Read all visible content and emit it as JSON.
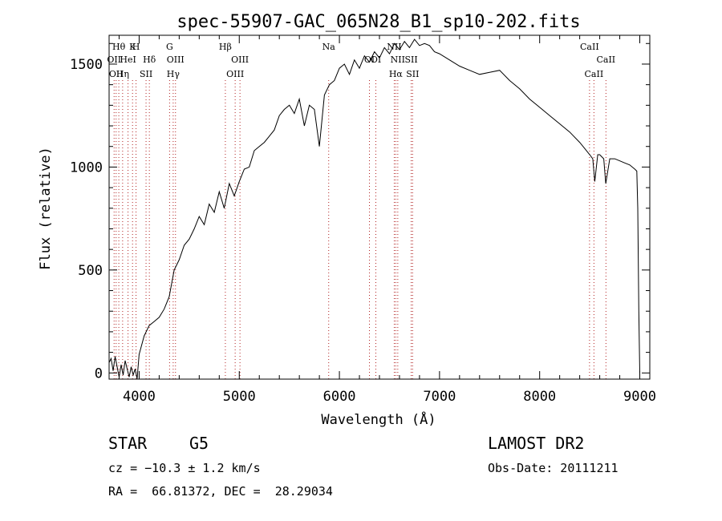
{
  "chart_data": {
    "type": "line",
    "title": "spec-55907-GAC_065N28_B1_sp10-202.fits",
    "xlabel": "Wavelength (Å)",
    "ylabel": "Flux (relative)",
    "xlim": [
      3700,
      9100
    ],
    "ylim": [
      -30,
      1640
    ],
    "x_ticks": [
      4000,
      5000,
      6000,
      7000,
      8000,
      9000
    ],
    "y_ticks": [
      0,
      500,
      1000,
      1500
    ],
    "series": [
      {
        "x": [
          3700,
          3720,
          3740,
          3760,
          3780,
          3800,
          3820,
          3840,
          3860,
          3880,
          3900,
          3920,
          3940,
          3960,
          3980,
          4000,
          4050,
          4100,
          4150,
          4200,
          4250,
          4300,
          4350,
          4400,
          4450,
          4500,
          4550,
          4600,
          4650,
          4700,
          4750,
          4800,
          4850,
          4900,
          4950,
          5000,
          5050,
          5100,
          5150,
          5200,
          5250,
          5300,
          5350,
          5400,
          5450,
          5500,
          5550,
          5600,
          5650,
          5700,
          5750,
          5800,
          5850,
          5900,
          5950,
          6000,
          6050,
          6100,
          6150,
          6200,
          6250,
          6300,
          6350,
          6400,
          6450,
          6500,
          6550,
          6600,
          6650,
          6700,
          6750,
          6800,
          6850,
          6900,
          6950,
          7000,
          7100,
          7200,
          7300,
          7400,
          7500,
          7600,
          7700,
          7800,
          7900,
          8000,
          8100,
          8200,
          8300,
          8400,
          8450,
          8500,
          8530,
          8550,
          8580,
          8600,
          8640,
          8660,
          8700,
          8750,
          8800,
          8850,
          8900,
          8950,
          8970,
          8980,
          8990,
          9000
        ],
        "y": [
          50,
          70,
          10,
          80,
          30,
          -20,
          40,
          -10,
          60,
          20,
          -20,
          30,
          -10,
          20,
          -30,
          90,
          180,
          230,
          250,
          270,
          310,
          370,
          500,
          550,
          620,
          650,
          700,
          760,
          720,
          820,
          780,
          880,
          800,
          920,
          860,
          930,
          990,
          1000,
          1080,
          1100,
          1120,
          1150,
          1180,
          1250,
          1280,
          1300,
          1260,
          1330,
          1200,
          1300,
          1280,
          1100,
          1350,
          1400,
          1420,
          1480,
          1500,
          1450,
          1520,
          1480,
          1540,
          1510,
          1560,
          1530,
          1580,
          1550,
          1600,
          1570,
          1610,
          1580,
          1620,
          1590,
          1600,
          1590,
          1560,
          1550,
          1520,
          1490,
          1470,
          1450,
          1460,
          1470,
          1420,
          1380,
          1330,
          1290,
          1250,
          1210,
          1170,
          1120,
          1090,
          1060,
          1040,
          930,
          1060,
          1060,
          1040,
          920,
          1040,
          1040,
          1030,
          1020,
          1010,
          990,
          980,
          800,
          300,
          0
        ]
      }
    ],
    "lines": [
      {
        "x": 3750,
        "label": "OII",
        "row": 1
      },
      {
        "x": 3770,
        "label": "OII",
        "row": 2
      },
      {
        "x": 3797,
        "label": "Hθ",
        "row": 0
      },
      {
        "x": 3835,
        "label": "Hη",
        "row": 2
      },
      {
        "x": 3889,
        "label": "HeI",
        "row": 1
      },
      {
        "x": 3934,
        "label": "K",
        "row": 0
      },
      {
        "x": 3969,
        "label": "H",
        "row": 0
      },
      {
        "x": 4069,
        "label": "SII",
        "row": 2
      },
      {
        "x": 4102,
        "label": "Hδ",
        "row": 1
      },
      {
        "x": 4304,
        "label": "G",
        "row": 0
      },
      {
        "x": 4340,
        "label": "Hγ",
        "row": 2
      },
      {
        "x": 4363,
        "label": "OIII",
        "row": 1
      },
      {
        "x": 4861,
        "label": "Hβ",
        "row": 0
      },
      {
        "x": 4959,
        "label": "OIII",
        "row": 2
      },
      {
        "x": 5007,
        "label": "OIII",
        "row": 1
      },
      {
        "x": 5893,
        "label": "Na",
        "row": 0
      },
      {
        "x": 6300,
        "label": "OI",
        "row": 1
      },
      {
        "x": 6364,
        "label": "OI",
        "row": 1
      },
      {
        "x": 6548,
        "label": "NII",
        "row": 0
      },
      {
        "x": 6563,
        "label": "Hα",
        "row": 2
      },
      {
        "x": 6583,
        "label": "NII",
        "row": 1
      },
      {
        "x": 6717,
        "label": "SII",
        "row": 1
      },
      {
        "x": 6731,
        "label": "SII",
        "row": 2
      },
      {
        "x": 8498,
        "label": "CaII",
        "row": 0
      },
      {
        "x": 8542,
        "label": "CaII",
        "row": 2
      },
      {
        "x": 8662,
        "label": "CaII",
        "row": 1
      }
    ]
  },
  "info": {
    "class": "STAR",
    "subclass": "G5",
    "survey": "LAMOST DR2",
    "cz": "cz = −10.3 ± 1.2 km/s",
    "obs_date": "Obs-Date: 20111211",
    "coords": "RA =  66.81372, DEC =  28.29034"
  }
}
